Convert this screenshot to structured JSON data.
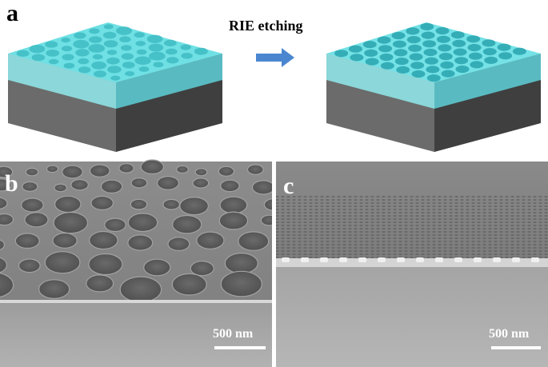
{
  "panels": {
    "a": {
      "label": "a",
      "arrow_caption": "RIE etching"
    },
    "b": {
      "label": "b",
      "scale_bar": "500 nm"
    },
    "c": {
      "label": "c",
      "scale_bar": "500 nm"
    }
  },
  "colors": {
    "film": "#5fd7dc",
    "substrate": "#555555",
    "arrow": "#4a86d0",
    "sem_surface": "#8a8a8a",
    "sem_substrate": "#a9a9a9"
  }
}
